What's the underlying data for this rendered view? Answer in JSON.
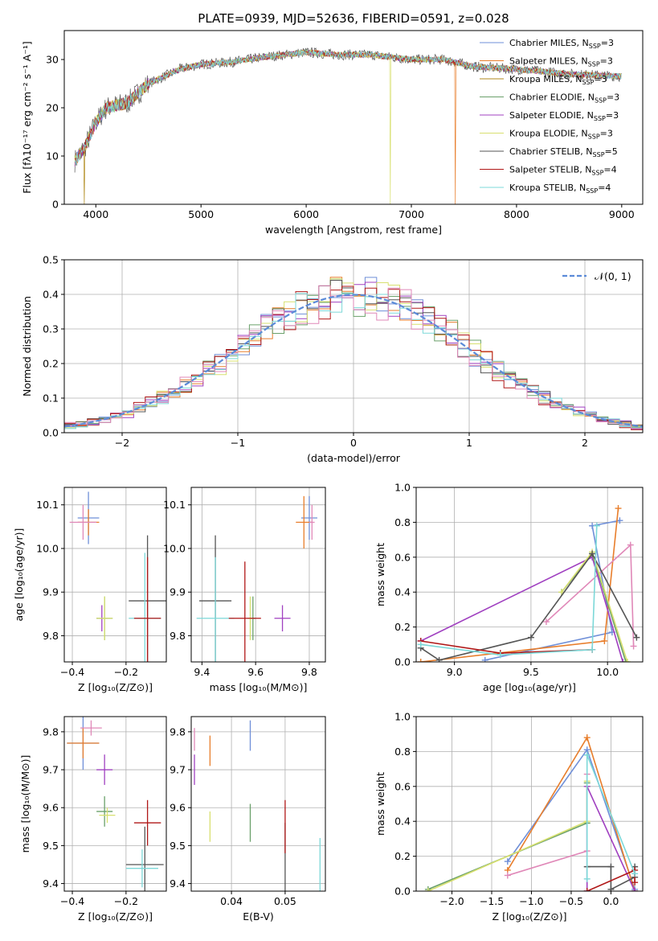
{
  "colors": [
    "#6f8fd8",
    "#e87e2c",
    "#b08a1c",
    "#6aa06a",
    "#a040c0",
    "#d8e070",
    "#555555",
    "#b01818",
    "#7cd8d8",
    "#e088b8"
  ],
  "chart_data": [
    {
      "id": "spectrum",
      "type": "line",
      "title": "PLATE=0939, MJD=52636, FIBERID=0591, z=0.028",
      "xlabel": "wavelength [Angstrom, rest frame]",
      "ylabel": "Flux [fλ10⁻¹⁷ erg cm⁻² s⁻¹ A⁻¹]",
      "xlim": [
        3700,
        9200
      ],
      "ylim": [
        0,
        36
      ],
      "xticks": [
        4000,
        5000,
        6000,
        7000,
        8000,
        9000
      ],
      "yticks": [
        0,
        10,
        20,
        30
      ],
      "grid": false,
      "legend_position": "top-right",
      "continuum": {
        "x": [
          3800,
          3900,
          4000,
          4100,
          4300,
          4500,
          4800,
          5000,
          5300,
          5600,
          6000,
          6300,
          6600,
          7000,
          7300,
          7600,
          8000,
          8500,
          9000
        ],
        "y": [
          9,
          12,
          17,
          20,
          21,
          25,
          28,
          29,
          29.5,
          30.5,
          31.5,
          31,
          31,
          30,
          30,
          28.5,
          28,
          27,
          26.5
        ]
      },
      "legend": [
        {
          "label": "Chabrier MILES, N",
          "sub": "SSP",
          "tail": "=3"
        },
        {
          "label": "Salpeter MILES, N",
          "sub": "SSP",
          "tail": "=3"
        },
        {
          "label": "Kroupa MILES, N",
          "sub": "SSP",
          "tail": "=3"
        },
        {
          "label": "Chabrier ELODIE, N",
          "sub": "SSP",
          "tail": "=3"
        },
        {
          "label": "Salpeter ELODIE, N",
          "sub": "SSP",
          "tail": "=3"
        },
        {
          "label": "Kroupa ELODIE, N",
          "sub": "SSP",
          "tail": "=3"
        },
        {
          "label": "Chabrier STELIB, N",
          "sub": "SSP",
          "tail": "=5"
        },
        {
          "label": "Salpeter STELIB, N",
          "sub": "SSP",
          "tail": "=4"
        },
        {
          "label": "Kroupa STELIB, N",
          "sub": "SSP",
          "tail": "=4"
        }
      ],
      "drops": [
        {
          "x": 3890,
          "series": 2
        },
        {
          "x": 6800,
          "series": 5
        },
        {
          "x": 7420,
          "series": 1
        }
      ]
    },
    {
      "id": "residuals",
      "type": "line",
      "xlabel": "(data-model)/error",
      "ylabel": "Normed distribution",
      "xlim": [
        -2.5,
        2.5
      ],
      "ylim": [
        0,
        0.5
      ],
      "xticks": [
        -2,
        -1,
        0,
        1,
        2
      ],
      "yticks": [
        0.0,
        0.1,
        0.2,
        0.3,
        0.4,
        0.5
      ],
      "grid": true,
      "legend": [
        {
          "label": "𝒩(0, 1)",
          "style": "dashed"
        }
      ],
      "legend_position": "top-right",
      "bin_width": 0.1
    },
    {
      "id": "age-vs-Z",
      "type": "scatter",
      "xlabel": "Z [log₁₀(Z/Z⊙)]",
      "ylabel": "age  [log₁₀(age/yr)]",
      "xlim": [
        -0.43,
        -0.05
      ],
      "ylim": [
        9.74,
        10.14
      ],
      "xticks": [
        -0.4,
        -0.2
      ],
      "yticks": [
        9.8,
        9.9,
        10.0,
        10.1
      ],
      "grid": true,
      "points": [
        {
          "x": -0.34,
          "y": 10.07,
          "xerr": 0.04,
          "yerr": 0.06,
          "series": 0
        },
        {
          "x": -0.34,
          "y": 10.06,
          "xerr": 0.04,
          "yerr": 0.03,
          "series": 1
        },
        {
          "x": -0.36,
          "y": 10.06,
          "xerr": 0.05,
          "yerr": 0.04,
          "series": 9
        },
        {
          "x": -0.29,
          "y": 9.84,
          "xerr": 0.02,
          "yerr": 0.03,
          "series": 4
        },
        {
          "x": -0.28,
          "y": 9.84,
          "xerr": 0.03,
          "yerr": 0.05,
          "series": 3
        },
        {
          "x": -0.28,
          "y": 9.84,
          "xerr": 0.03,
          "yerr": 0.05,
          "series": 5
        },
        {
          "x": -0.12,
          "y": 9.88,
          "xerr": 0.07,
          "yerr": 0.15,
          "series": 6
        },
        {
          "x": -0.13,
          "y": 9.84,
          "xerr": 0.06,
          "yerr": 0.15,
          "series": 8
        },
        {
          "x": -0.12,
          "y": 9.84,
          "xerr": 0.05,
          "yerr": 0.14,
          "series": 7
        }
      ]
    },
    {
      "id": "age-vs-mass",
      "type": "scatter",
      "xlabel": "mass [log₁₀(M/M⊙)]",
      "ylabel": "",
      "xlim": [
        9.36,
        9.86
      ],
      "ylim": [
        9.74,
        10.14
      ],
      "xticks": [
        9.4,
        9.6,
        9.8
      ],
      "yticks": [
        9.8,
        9.9,
        10.0,
        10.1
      ],
      "grid": true,
      "points": [
        {
          "x": 9.8,
          "y": 10.07,
          "xerr": 0.03,
          "yerr": 0.05,
          "series": 0
        },
        {
          "x": 9.78,
          "y": 10.06,
          "xerr": 0.03,
          "yerr": 0.06,
          "series": 1
        },
        {
          "x": 9.81,
          "y": 10.06,
          "xerr": 0.01,
          "yerr": 0.04,
          "series": 9
        },
        {
          "x": 9.7,
          "y": 9.84,
          "xerr": 0.03,
          "yerr": 0.03,
          "series": 4
        },
        {
          "x": 9.59,
          "y": 9.84,
          "xerr": 0.01,
          "yerr": 0.05,
          "series": 3
        },
        {
          "x": 9.58,
          "y": 9.84,
          "xerr": 0.01,
          "yerr": 0.05,
          "series": 5
        },
        {
          "x": 9.45,
          "y": 9.88,
          "xerr": 0.06,
          "yerr": 0.15,
          "series": 6
        },
        {
          "x": 9.45,
          "y": 9.84,
          "xerr": 0.07,
          "yerr": 0.14,
          "series": 8
        },
        {
          "x": 9.56,
          "y": 9.84,
          "xerr": 0.06,
          "yerr": 0.13,
          "series": 7
        }
      ]
    },
    {
      "id": "weight-vs-age",
      "type": "line",
      "xlabel": "age  [log₁₀(age/yr)]",
      "ylabel": "mass weight",
      "xlim": [
        8.75,
        10.23
      ],
      "ylim": [
        0,
        1.0
      ],
      "xticks": [
        9.0,
        9.5,
        10.0
      ],
      "yticks": [
        0.0,
        0.2,
        0.4,
        0.6,
        0.8,
        1.0
      ],
      "grid": true,
      "series": [
        {
          "c": 0,
          "x": [
            9.2,
            10.03,
            9.9,
            10.08
          ],
          "y": [
            0.01,
            0.17,
            0.78,
            0.81
          ]
        },
        {
          "c": 1,
          "x": [
            8.78,
            9.98,
            10.07
          ],
          "y": [
            0.0,
            0.12,
            0.88
          ]
        },
        {
          "c": 9,
          "x": [
            9.6,
            10.15,
            10.17
          ],
          "y": [
            0.23,
            0.67,
            0.09
          ]
        },
        {
          "c": 4,
          "x": [
            8.78,
            9.9,
            10.1
          ],
          "y": [
            0.12,
            0.6,
            0.0
          ]
        },
        {
          "c": 3,
          "x": [
            9.7,
            9.9,
            10.12
          ],
          "y": [
            0.4,
            0.62,
            0.0
          ]
        },
        {
          "c": 5,
          "x": [
            9.7,
            9.9,
            10.13
          ],
          "y": [
            0.4,
            0.63,
            0.0
          ]
        },
        {
          "c": 6,
          "x": [
            8.78,
            8.9,
            9.5,
            9.9,
            10.19
          ],
          "y": [
            0.08,
            0.01,
            0.14,
            0.62,
            0.14
          ]
        },
        {
          "c": 7,
          "x": [
            8.78,
            9.3,
            9.9
          ],
          "y": [
            0.12,
            0.05,
            0.07
          ]
        },
        {
          "c": 8,
          "x": [
            8.78,
            9.3,
            9.9,
            9.93
          ],
          "y": [
            0.1,
            0.04,
            0.07,
            0.78
          ]
        }
      ]
    },
    {
      "id": "mass-vs-Z",
      "type": "scatter",
      "xlabel": "Z [log₁₀(Z/Z⊙)]",
      "ylabel": "mass [log₁₀(M/M⊙)]",
      "xlim": [
        -0.43,
        -0.05
      ],
      "ylim": [
        9.38,
        9.84
      ],
      "xticks": [
        -0.4,
        -0.2
      ],
      "yticks": [
        9.4,
        9.5,
        9.6,
        9.7,
        9.8
      ],
      "grid": true,
      "points": [
        {
          "x": -0.36,
          "y": 9.77,
          "xerr": 0.06,
          "yerr": 0.07,
          "series": 0
        },
        {
          "x": -0.36,
          "y": 9.77,
          "xerr": 0.06,
          "yerr": 0.04,
          "series": 1
        },
        {
          "x": -0.33,
          "y": 9.81,
          "xerr": 0.04,
          "yerr": 0.02,
          "series": 9
        },
        {
          "x": -0.28,
          "y": 9.7,
          "xerr": 0.03,
          "yerr": 0.04,
          "series": 4
        },
        {
          "x": -0.28,
          "y": 9.59,
          "xerr": 0.03,
          "yerr": 0.04,
          "series": 3
        },
        {
          "x": -0.27,
          "y": 9.58,
          "xerr": 0.03,
          "yerr": 0.02,
          "series": 5
        },
        {
          "x": -0.13,
          "y": 9.45,
          "xerr": 0.07,
          "yerr": 0.1,
          "series": 6
        },
        {
          "x": -0.14,
          "y": 9.44,
          "xerr": 0.06,
          "yerr": 0.05,
          "series": 8
        },
        {
          "x": -0.12,
          "y": 9.56,
          "xerr": 0.05,
          "yerr": 0.06,
          "series": 7
        }
      ]
    },
    {
      "id": "mass-vs-EBV",
      "type": "scatter",
      "xlabel": "E(B-V)",
      "ylabel": "",
      "xlim": [
        0.0325,
        0.0575
      ],
      "ylim": [
        9.38,
        9.84
      ],
      "xticks": [
        0.04,
        0.05
      ],
      "yticks": [
        9.4,
        9.5,
        9.6,
        9.7,
        9.8
      ],
      "grid": true,
      "points": [
        {
          "x": 0.0435,
          "y": 9.79,
          "yerr": 0.04,
          "series": 0
        },
        {
          "x": 0.036,
          "y": 9.75,
          "yerr": 0.04,
          "series": 1
        },
        {
          "x": 0.0331,
          "y": 9.78,
          "yerr": 0.03,
          "series": 9
        },
        {
          "x": 0.0331,
          "y": 9.7,
          "yerr": 0.04,
          "series": 4
        },
        {
          "x": 0.0435,
          "y": 9.56,
          "yerr": 0.05,
          "series": 3
        },
        {
          "x": 0.036,
          "y": 9.55,
          "yerr": 0.04,
          "series": 5
        },
        {
          "x": 0.05,
          "y": 9.47,
          "yerr": 0.09,
          "series": 6
        },
        {
          "x": 0.0565,
          "y": 9.45,
          "yerr": 0.07,
          "series": 8
        },
        {
          "x": 0.05,
          "y": 9.55,
          "yerr": 0.07,
          "series": 7
        }
      ]
    },
    {
      "id": "weight-vs-Z",
      "type": "line",
      "xlabel": "Z [log₁₀(Z/Z⊙)]",
      "ylabel": "mass weight",
      "xlim": [
        -2.45,
        0.4
      ],
      "ylim": [
        0,
        1.0
      ],
      "xticks": [
        -2.0,
        -1.5,
        -1.0,
        -0.5,
        0.0
      ],
      "yticks": [
        0.0,
        0.2,
        0.4,
        0.6,
        0.8,
        1.0
      ],
      "grid": true,
      "series": [
        {
          "c": 0,
          "x": [
            -1.3,
            -0.3,
            0.3
          ],
          "y": [
            0.17,
            0.81,
            0.01
          ]
        },
        {
          "c": 1,
          "x": [
            -1.3,
            -0.3,
            0.3
          ],
          "y": [
            0.12,
            0.88,
            0.0
          ]
        },
        {
          "c": 9,
          "x": [
            -1.3,
            -0.3,
            -0.3
          ],
          "y": [
            0.09,
            0.23,
            0.67
          ]
        },
        {
          "c": 4,
          "x": [
            -0.3,
            -0.3,
            0.3
          ],
          "y": [
            0.0,
            0.6,
            0.0
          ]
        },
        {
          "c": 3,
          "x": [
            -2.3,
            -0.3,
            -0.3
          ],
          "y": [
            0.01,
            0.39,
            0.62
          ]
        },
        {
          "c": 5,
          "x": [
            -2.3,
            -0.3,
            -0.3
          ],
          "y": [
            0.0,
            0.4,
            0.63
          ]
        },
        {
          "c": 6,
          "x": [
            -0.3,
            0.0,
            0.0,
            0.3,
            0.3
          ],
          "y": [
            0.14,
            0.14,
            0.01,
            0.08,
            0.14
          ]
        },
        {
          "c": 7,
          "x": [
            -0.3,
            0.3,
            0.3
          ],
          "y": [
            0.0,
            0.12,
            0.05
          ]
        },
        {
          "c": 8,
          "x": [
            -0.3,
            -0.3,
            0.3
          ],
          "y": [
            0.07,
            0.78,
            0.1
          ]
        }
      ]
    }
  ]
}
